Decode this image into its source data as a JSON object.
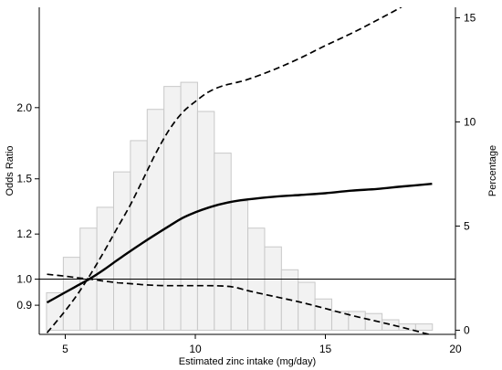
{
  "chart_data": {
    "type": "line",
    "title": "",
    "xlabel": "Estimated zinc intake (mg/day)",
    "ylabel_left": "Odds Ratio",
    "ylabel_right": "Percentage",
    "xlim": [
      4.0,
      20.0
    ],
    "left_axis": {
      "scale": "log",
      "ylim": [
        0.8,
        3.0
      ],
      "ticks": [
        0.9,
        1.0,
        1.2,
        1.5,
        2.0
      ],
      "tick_labels": [
        "0.9",
        "1.0",
        "1.2",
        "1.5",
        "2.0"
      ]
    },
    "right_axis": {
      "scale": "linear",
      "ylim": [
        -0.2,
        15.5
      ],
      "ticks": [
        0,
        5,
        10,
        15
      ],
      "tick_labels": [
        "0",
        "5",
        "10",
        "15"
      ]
    },
    "x_ticks": [
      5,
      10,
      15,
      20
    ],
    "x_tick_labels": [
      "5",
      "10",
      "15",
      "20"
    ],
    "reference_line": 1.0,
    "grid": false,
    "histogram": {
      "axis": "right",
      "bin_width": 0.645,
      "bin_starts": [
        4.28,
        4.925,
        5.57,
        6.215,
        6.86,
        7.505,
        8.15,
        8.795,
        9.44,
        10.085,
        10.73,
        11.375,
        12.02,
        12.665,
        13.31,
        13.955,
        14.6,
        15.245,
        15.89,
        16.535,
        17.18,
        17.825,
        18.47
      ],
      "values": [
        1.8,
        3.5,
        4.9,
        5.9,
        7.6,
        9.1,
        10.6,
        11.7,
        11.9,
        10.5,
        8.5,
        6.2,
        4.9,
        4.0,
        2.9,
        2.3,
        1.5,
        0.9,
        0.9,
        0.8,
        0.5,
        0.3,
        0.3
      ],
      "fill": "#f2f2f2",
      "stroke": "#c8c8c8"
    },
    "series": [
      {
        "role": "estimate",
        "style": "solid",
        "x": [
          4.3,
          5.0,
          5.5,
          6.0,
          6.5,
          7.0,
          7.5,
          8.0,
          8.5,
          9.0,
          9.5,
          10.0,
          10.5,
          11.0,
          11.5,
          12.0,
          13.0,
          14.0,
          15.0,
          16.0,
          17.0,
          18.0,
          19.1
        ],
        "y": [
          0.91,
          0.948,
          0.976,
          1.005,
          1.04,
          1.08,
          1.12,
          1.16,
          1.2,
          1.24,
          1.28,
          1.31,
          1.335,
          1.355,
          1.37,
          1.38,
          1.395,
          1.405,
          1.415,
          1.43,
          1.44,
          1.455,
          1.47
        ]
      },
      {
        "role": "upper-ci",
        "style": "dashed",
        "x": [
          4.3,
          5.0,
          5.5,
          6.0,
          6.5,
          7.0,
          7.5,
          8.0,
          8.5,
          9.0,
          9.5,
          10.0,
          10.5,
          11.0,
          11.5,
          12.0,
          13.0,
          14.0,
          15.0,
          16.0,
          17.0,
          18.0,
          19.1
        ],
        "y": [
          0.805,
          0.88,
          0.945,
          1.025,
          1.12,
          1.23,
          1.35,
          1.5,
          1.67,
          1.83,
          1.96,
          2.05,
          2.13,
          2.18,
          2.21,
          2.24,
          2.33,
          2.44,
          2.57,
          2.7,
          2.85,
          3.02,
          3.27
        ]
      },
      {
        "role": "lower-ci",
        "style": "dashed",
        "x": [
          4.3,
          5.0,
          5.5,
          6.0,
          6.5,
          7.0,
          7.5,
          8.0,
          8.5,
          9.0,
          9.5,
          10.0,
          10.5,
          11.0,
          11.5,
          12.0,
          13.0,
          14.0,
          15.0,
          16.0,
          17.0,
          18.0,
          19.1
        ],
        "y": [
          1.02,
          1.012,
          1.005,
          1.0,
          0.992,
          0.986,
          0.982,
          0.978,
          0.975,
          0.974,
          0.974,
          0.974,
          0.974,
          0.973,
          0.968,
          0.955,
          0.933,
          0.912,
          0.888,
          0.864,
          0.843,
          0.822,
          0.797
        ]
      }
    ]
  }
}
